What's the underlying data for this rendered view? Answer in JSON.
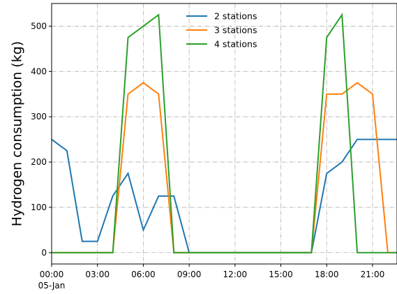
{
  "chart_data": {
    "type": "line",
    "xlabel": "",
    "ylabel": "Hydrogen consumption (kg)",
    "x": [
      0,
      1,
      2,
      3,
      4,
      5,
      6,
      7,
      8,
      9,
      10,
      11,
      12,
      13,
      14,
      15,
      16,
      17,
      18,
      19,
      20,
      21,
      22,
      23
    ],
    "xlim": [
      0,
      22.6
    ],
    "ylim": [
      -25,
      550
    ],
    "x_ticks": [
      {
        "x": 0,
        "label": "00:00",
        "sublabel": "05-Jan"
      },
      {
        "x": 3,
        "label": "03:00"
      },
      {
        "x": 6,
        "label": "06:00"
      },
      {
        "x": 9,
        "label": "09:00"
      },
      {
        "x": 12,
        "label": "12:00"
      },
      {
        "x": 15,
        "label": "15:00"
      },
      {
        "x": 18,
        "label": "18:00"
      },
      {
        "x": 21,
        "label": "21:00"
      }
    ],
    "y_ticks": [
      0,
      100,
      200,
      300,
      400,
      500
    ],
    "grid": true,
    "legend_position": "top-center",
    "series": [
      {
        "name": "2 stations",
        "color": "#1f77b4",
        "values": [
          250,
          225,
          25,
          25,
          125,
          175,
          50,
          125,
          125,
          0,
          0,
          0,
          0,
          0,
          0,
          0,
          0,
          0,
          175,
          200,
          250,
          250,
          250,
          250
        ]
      },
      {
        "name": "3 stations",
        "color": "#ff7f0e",
        "values": [
          0,
          0,
          0,
          0,
          0,
          350,
          375,
          350,
          0,
          0,
          0,
          0,
          0,
          0,
          0,
          0,
          0,
          0,
          350,
          350,
          375,
          350,
          0,
          0
        ]
      },
      {
        "name": "4 stations",
        "color": "#2ca02c",
        "values": [
          0,
          0,
          0,
          0,
          0,
          475,
          500,
          525,
          0,
          0,
          0,
          0,
          0,
          0,
          0,
          0,
          0,
          0,
          475,
          525,
          0,
          0,
          0,
          0
        ]
      }
    ]
  }
}
